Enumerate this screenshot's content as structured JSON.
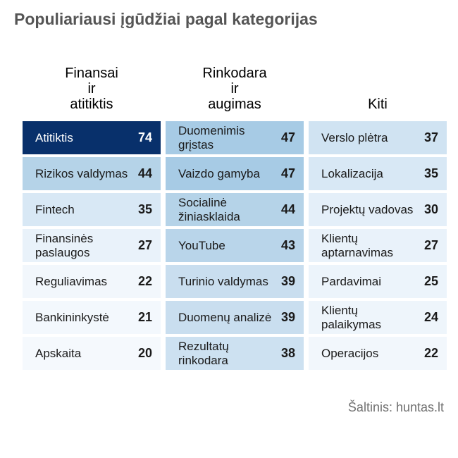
{
  "title": "Populiariausi įgūdžiai pagal kategorijas",
  "source": "Šaltinis: huntas.lt",
  "chart_data": {
    "type": "table",
    "columns": [
      {
        "header": [
          "Finansai",
          "ir",
          "atitiktis"
        ],
        "items": [
          {
            "label": "Atitiktis",
            "value": 74
          },
          {
            "label": "Rizikos valdymas",
            "value": 44
          },
          {
            "label": "Fintech",
            "value": 35
          },
          {
            "label": "Finansinės paslaugos",
            "value": 27
          },
          {
            "label": "Reguliavimas",
            "value": 22
          },
          {
            "label": "Bankininkystė",
            "value": 21
          },
          {
            "label": "Apskaita",
            "value": 20
          }
        ]
      },
      {
        "header": [
          "Rinkodara",
          "ir",
          "augimas"
        ],
        "items": [
          {
            "label": "Duomenimis grįstas",
            "value": 47
          },
          {
            "label": "Vaizdo gamyba",
            "value": 47
          },
          {
            "label": "Socialinė žiniasklaida",
            "value": 44
          },
          {
            "label": "YouTube",
            "value": 43
          },
          {
            "label": "Turinio valdymas",
            "value": 39
          },
          {
            "label": "Duomenų analizė",
            "value": 39
          },
          {
            "label": "Rezultatų rinkodara",
            "value": 38
          }
        ]
      },
      {
        "header": [
          "Kiti"
        ],
        "items": [
          {
            "label": "Verslo plėtra",
            "value": 37
          },
          {
            "label": "Lokalizacija",
            "value": 35
          },
          {
            "label": "Projektų vadovas",
            "value": 30
          },
          {
            "label": "Klientų aptarnavimas",
            "value": 27
          },
          {
            "label": "Pardavimai",
            "value": 25
          },
          {
            "label": "Klientų palaikymas",
            "value": 24
          },
          {
            "label": "Operacijos",
            "value": 22
          }
        ]
      }
    ],
    "color_scale": {
      "low": "#f5f9fd",
      "high": "#08306b"
    }
  }
}
